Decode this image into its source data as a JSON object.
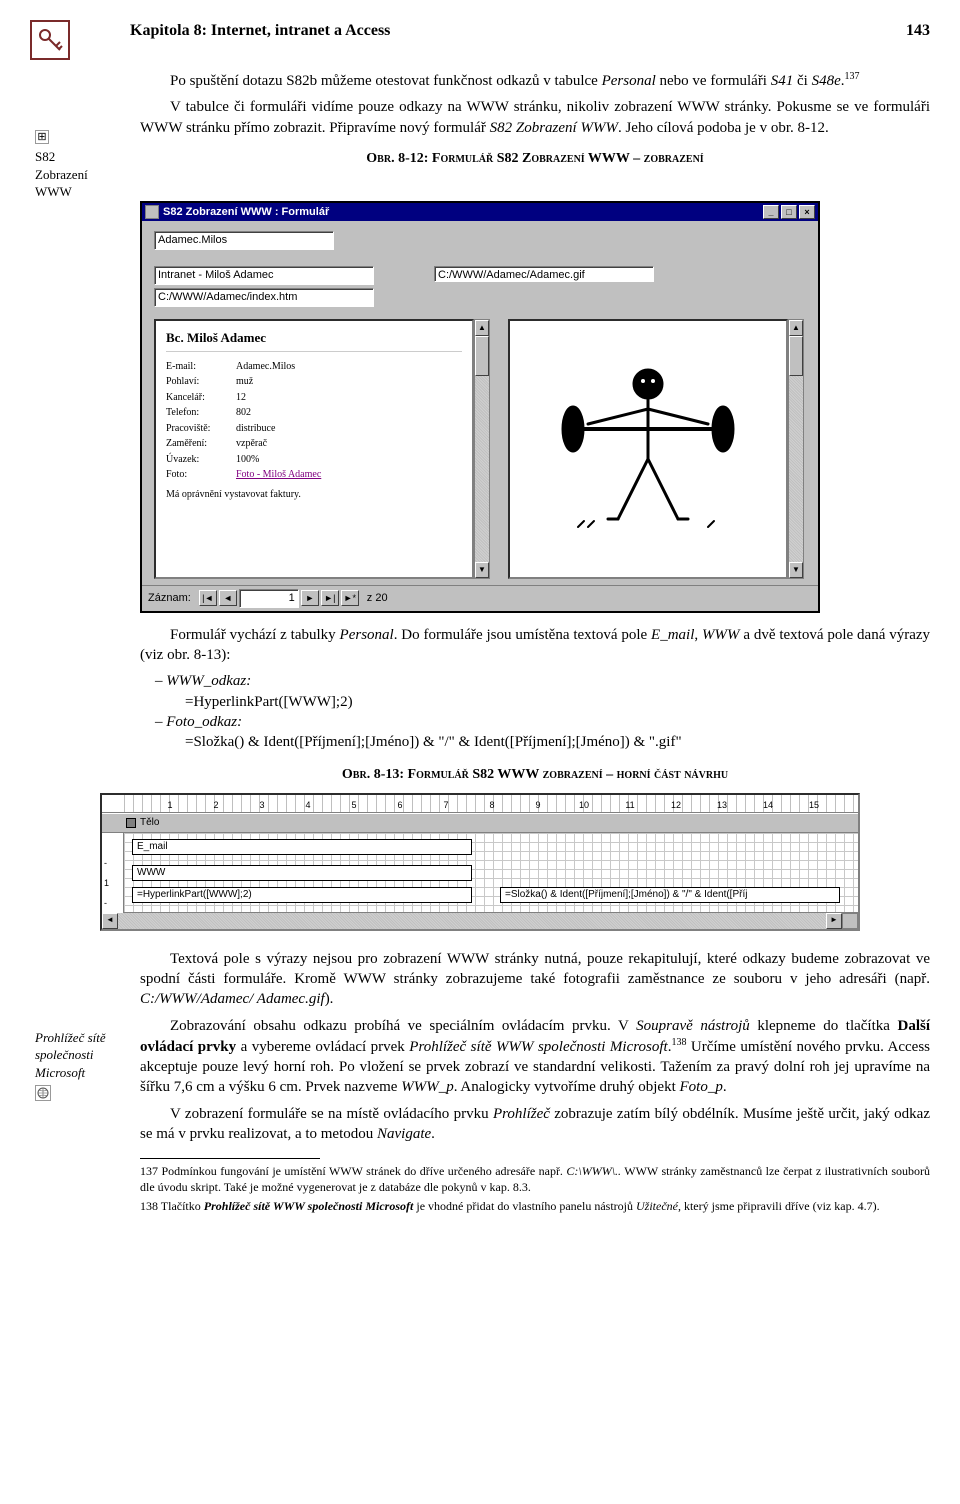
{
  "header": {
    "chapter": "Kapitola 8: Internet, intranet a Access",
    "page": "143"
  },
  "sidebar": {
    "icon_box": "⊞",
    "note1_line1": "S82",
    "note1_line2": "Zobrazení",
    "note1_line3": "WWW",
    "note2_line1": "Prohlížeč sítě",
    "note2_line2": "společnosti",
    "note2_line3": "Microsoft"
  },
  "paragraphs": {
    "p1a": "Po spuštění dotazu S82b můžeme otestovat funkčnost odkazů v tabulce ",
    "p1_ital1": "Personal",
    "p1b": " nebo ve formuláři ",
    "p1_ital2": "S41",
    "p1c": " či ",
    "p1_ital3": "S48e",
    "p1d": ".",
    "sup137": "137",
    "p2a": "V tabulce či formuláři vidíme pouze odkazy na WWW stránku, nikoliv zobrazení WWW stránky. Pokusme se ve formuláři WWW stránku přímo zobrazit. Připravíme nový formulář ",
    "p2_ital1": "S82 Zobrazení WWW",
    "p2b": ". Jeho cílová podoba je v obr. 8-12.",
    "fig1": "Obr. 8-12: Formulář S82 Zobrazení WWW – zobrazení",
    "p3a": "Formulář vychází z tabulky ",
    "p3_ital1": "Personal",
    "p3b": ". Do formuláře jsou umístěna textová pole ",
    "p3_ital2": "E_mail",
    "p3c": ", ",
    "p3_ital3": "WWW",
    "p3d": " a dvě textová pole daná výrazy (viz obr. 8-13):",
    "li1": "– WWW_odkaz:",
    "li1_formula": "=HyperlinkPart([WWW];2)",
    "li2": "– Foto_odkaz:",
    "li2_formula": "=Složka() & Ident([Příjmení];[Jméno]) & \"/\" & Ident([Příjmení];[Jméno]) & \".gif\"",
    "fig2": "Obr. 8-13: Formulář S82 WWW zobrazení – horní část návrhu",
    "p4": "Textová pole s výrazy nejsou pro zobrazení WWW stránky nutná, pouze rekapitulují, které odkazy budeme zobrazovat ve spodní části formuláře. Kromě WWW stránky zobrazujeme také fotografii zaměstnance ze souboru v jeho adresáři (např. ",
    "p4_ital": "C:/WWW/Adamec/ Adamec.gif",
    "p4b": ").",
    "p5a": "Zobrazování obsahu odkazu probíhá ve speciálním ovládacím prvku. V ",
    "p5_ital1": "Soupravě nástrojů",
    "p5b": " klepneme do tlačítka ",
    "p5_bold1": "Další ovládací prvky",
    "p5c": " a vybereme ovládací prvek ",
    "p5_ital2": "Prohlížeč sítě WWW společnosti Microsoft",
    "p5d": ".",
    "sup138": "138",
    "p5e": " Určíme umístění nového prvku. Access akceptuje pouze levý horní roh. Po vložení se prvek zobrazí ve standardní velikosti. Tažením za pravý dolní roh jej upravíme na šířku 7,6 cm a výšku 6 cm. Prvek nazveme ",
    "p5_ital3": "WWW_p",
    "p5f": ". Analogicky vytvoříme druhý objekt ",
    "p5_ital4": "Foto_p",
    "p5g": ".",
    "p6a": "V zobrazení formuláře se na místě ovládacího prvku ",
    "p6_ital1": "Prohlížeč",
    "p6b": " zobrazuje zatím bílý obdélník. Musíme ještě určit, jaký odkaz se má v prvku realizovat, a to metodou ",
    "p6_ital2": "Navigate",
    "p6c": "."
  },
  "footnotes": {
    "fn137_num": "137",
    "fn137": " Podmínkou fungování je umístění WWW stránek do dříve určeného adresáře např. ",
    "fn137_ital": "C:\\WWW\\..",
    "fn137b": " WWW stránky zaměstnanců lze čerpat z ilustrativních souborů dle úvodu skript. Také je možné vygenerovat je z databáze dle pokynů v kap. 8.3.",
    "fn138_num": "138",
    "fn138": " Tlačítko ",
    "fn138_b": "Prohlížeč sítě WWW společnosti Microsoft",
    "fn138c": " je vhodné přidat do vlastního panelu nástrojů ",
    "fn138_ital": "Užitečné",
    "fn138d": ", který jsme připravili dříve (viz kap. 4.7)."
  },
  "window1": {
    "title": "S82 Zobrazení WWW : Formulář",
    "minimize": "_",
    "maximize": "□",
    "close": "×",
    "email_value": "Adamec.Milos",
    "www_value": "Intranet - Miloš Adamec",
    "path_value": "C:/WWW/Adamec/index.htm",
    "img_path": "C:/WWW/Adamec/Adamec.gif",
    "person_name": "Bc. Miloš Adamec",
    "kv": [
      {
        "k": "E-mail:",
        "v": "Adamec.Milos"
      },
      {
        "k": "Pohlaví:",
        "v": "muž"
      },
      {
        "k": "Kancelář:",
        "v": "12"
      },
      {
        "k": "Telefon:",
        "v": "802"
      },
      {
        "k": "Pracoviště:",
        "v": "distribuce"
      },
      {
        "k": "Zaměření:",
        "v": "vzpěrač"
      },
      {
        "k": "Úvazek:",
        "v": "100%"
      },
      {
        "k": "Foto:",
        "v": "Foto - Miloš Adamec",
        "link": true
      }
    ],
    "perm_text": "Má oprávnění vystavovat faktury.",
    "nav_label": "Záznam:",
    "nav_first": "|◄",
    "nav_prev": "◄",
    "nav_value": "1",
    "nav_next": "►",
    "nav_last": "►|",
    "nav_new": "►*",
    "nav_of": "z 20"
  },
  "window2": {
    "section": "Tělo",
    "ruler_marks": [
      "1",
      "2",
      "3",
      "4",
      "5",
      "6",
      "7",
      "8",
      "9",
      "10",
      "11",
      "12",
      "13",
      "14",
      "15"
    ],
    "ctrl1": "E_mail",
    "ctrl2": "WWW",
    "ctrl3": "=HyperlinkPart([WWW];2)",
    "ctrl4": "=Složka() & Ident([Příjmení];[Jméno]) & \"/\" & Ident([Příj"
  },
  "colors": {
    "titlebar": "#000080",
    "win_bg": "#c0c0c0",
    "key_border": "#7a2a2a",
    "link": "#800080"
  }
}
